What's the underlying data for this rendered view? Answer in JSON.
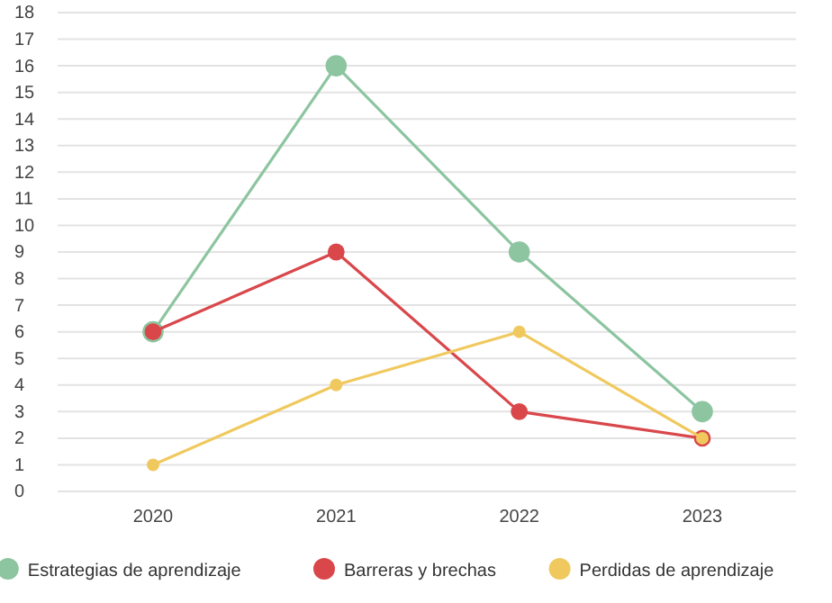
{
  "chart_data": {
    "type": "line",
    "categories": [
      "2020",
      "2021",
      "2022",
      "2023"
    ],
    "series": [
      {
        "name": "Estrategias de aprendizaje",
        "color": "#8cc5a0",
        "values": [
          6,
          16,
          9,
          3
        ]
      },
      {
        "name": "Barreras y brechas",
        "color": "#d9474b",
        "values": [
          6,
          9,
          3,
          2
        ]
      },
      {
        "name": "Perdidas de aprendizaje",
        "color": "#f0c95e",
        "values": [
          1,
          4,
          6,
          2
        ]
      }
    ],
    "ylim": [
      0,
      18
    ],
    "yticks": [
      0,
      1,
      2,
      3,
      4,
      5,
      6,
      7,
      8,
      9,
      10,
      11,
      12,
      13,
      14,
      15,
      16,
      17,
      18
    ],
    "grid": "y",
    "legend": "bottom",
    "marker": "circle",
    "line_style": "solid"
  }
}
